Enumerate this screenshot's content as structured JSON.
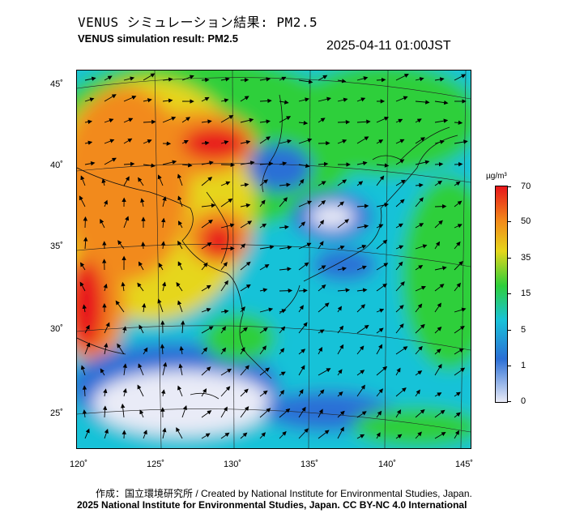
{
  "header": {
    "title_jp": "VENUS シミュレーション結果: PM2.5",
    "title_en": "VENUS simulation result: PM2.5",
    "timestamp": "2025-04-11 01:00JST"
  },
  "map": {
    "lat_labels": [
      "45˚",
      "40˚",
      "35˚",
      "30˚",
      "25˚"
    ],
    "lon_labels": [
      "120˚",
      "125˚",
      "130˚",
      "135˚",
      "140˚",
      "145˚"
    ]
  },
  "colorbar": {
    "unit": "µg/m³",
    "ticks": [
      "70",
      "50",
      "35",
      "15",
      "5",
      "1",
      "0"
    ],
    "colors": {
      "high": "#e8161b",
      "orange": "#f28a1a",
      "yellow": "#e6d61c",
      "green": "#2ecf3a",
      "cyan": "#19c2d8",
      "blue": "#2b6fd6",
      "pale": "#e9ebf7"
    }
  },
  "footer": {
    "credit": "作成：国立環境研究所 / Created by National Institute for Environmental Studies, Japan.",
    "copyright": "2025 National Institute for Environmental Studies, Japan. CC BY-NC 4.0 International"
  }
}
